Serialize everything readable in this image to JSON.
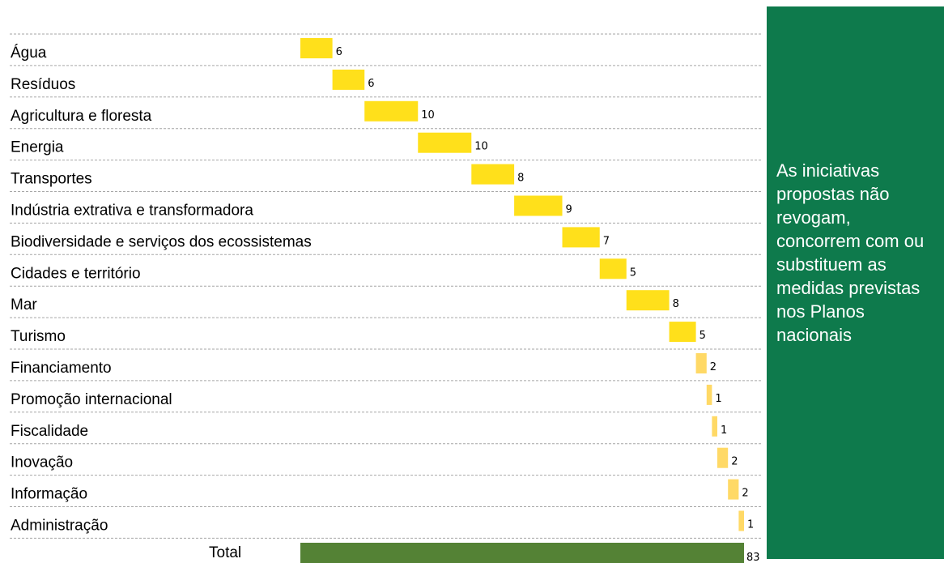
{
  "chart_data": {
    "type": "bar",
    "subtype": "waterfall-horizontal",
    "categories": [
      "Água",
      "Resíduos",
      "Agricultura e floresta",
      "Energia",
      "Transportes",
      "Indústria extrativa e transformadora",
      "Biodiversidade e serviços dos ecossistemas",
      "Cidades e território",
      "Mar",
      "Turismo",
      "Financiamento",
      "Promoção internacional",
      "Fiscalidade",
      "Inovação",
      "Informação",
      "Administração"
    ],
    "values": [
      6,
      6,
      10,
      10,
      8,
      9,
      7,
      5,
      8,
      5,
      2,
      1,
      1,
      2,
      2,
      1
    ],
    "value_labels": [
      "6",
      "6",
      "10",
      "10",
      "8",
      "9",
      "7",
      "5",
      "8",
      "5",
      "2",
      "1",
      "1",
      "2",
      "2",
      "1"
    ],
    "total_label": "Total",
    "total_value": 83,
    "total_value_label": "83",
    "xlim": [
      0,
      83
    ],
    "grid": "dashed horizontal row separators",
    "colors": {
      "bar_main": "#ffe01b",
      "bar_small": "#ffd966",
      "total_bar": "#548235",
      "grid": "#a6a6a6"
    }
  },
  "note": {
    "text": "As iniciativas propostas não revogam, concorrem com ou substituem as medidas previstas nos Planos nacionais",
    "background": "#0e7a4c",
    "color": "#ffffff"
  }
}
